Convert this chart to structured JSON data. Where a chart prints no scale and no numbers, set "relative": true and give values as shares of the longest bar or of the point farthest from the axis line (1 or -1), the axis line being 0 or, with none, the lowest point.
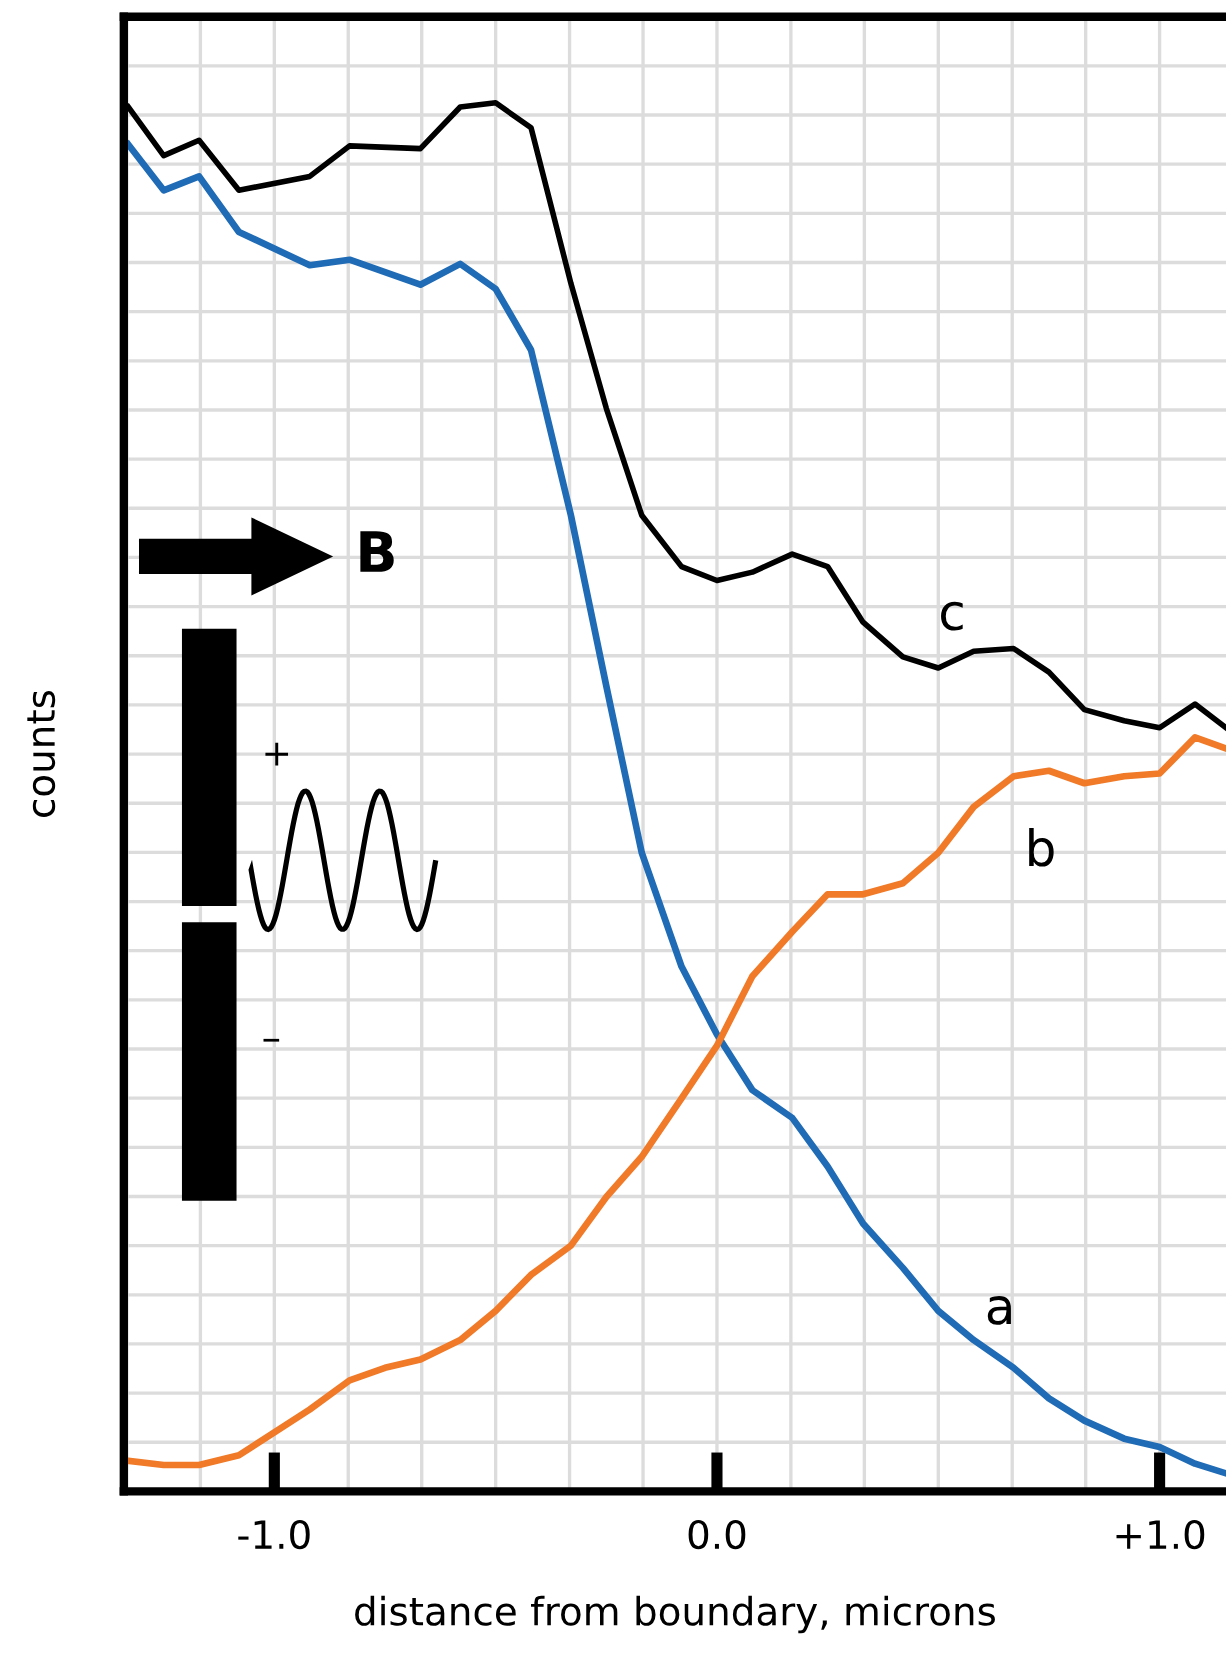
{
  "chart_data": {
    "type": "line",
    "relative": true,
    "xlabel": "distance from boundary, microns",
    "ylabel": "counts",
    "xlim": [
      -1.34,
      1.15
    ],
    "xticks": [
      {
        "value": -1.333,
        "label": null
      },
      {
        "value": -1.167,
        "label": null
      },
      {
        "value": -1.0,
        "label": "-1.0"
      },
      {
        "value": -0.833,
        "label": null
      },
      {
        "value": -0.667,
        "label": null
      },
      {
        "value": -0.5,
        "label": null
      },
      {
        "value": -0.333,
        "label": null
      },
      {
        "value": -0.167,
        "label": null
      },
      {
        "value": 0.0,
        "label": "0.0"
      },
      {
        "value": 0.167,
        "label": null
      },
      {
        "value": 0.333,
        "label": null
      },
      {
        "value": 0.5,
        "label": null
      },
      {
        "value": 0.667,
        "label": null
      },
      {
        "value": 0.833,
        "label": null
      },
      {
        "value": 1.0,
        "label": "+1.0"
      }
    ],
    "grid": true,
    "marker": "none",
    "line_style": "solid",
    "annotations": [
      "B",
      "+",
      "–"
    ],
    "series": [
      {
        "name": "a",
        "color": "#1f6bb5",
        "x": [
          -1.33,
          -1.25,
          -1.17,
          -1.08,
          -0.92,
          -0.83,
          -0.67,
          -0.58,
          -0.5,
          -0.42,
          -0.33,
          -0.25,
          -0.17,
          -0.08,
          0.0,
          0.08,
          0.17,
          0.25,
          0.33,
          0.42,
          0.5,
          0.58,
          0.67,
          0.75,
          0.83,
          0.92,
          1.0,
          1.08,
          1.15
        ],
        "values": [
          0.97,
          0.937,
          0.947,
          0.907,
          0.883,
          0.887,
          0.869,
          0.884,
          0.866,
          0.822,
          0.703,
          0.58,
          0.46,
          0.378,
          0.329,
          0.289,
          0.269,
          0.234,
          0.193,
          0.161,
          0.13,
          0.109,
          0.089,
          0.067,
          0.051,
          0.038,
          0.032,
          0.02,
          0.013
        ]
      },
      {
        "name": "b",
        "color": "#f07a28",
        "x": [
          -1.33,
          -1.25,
          -1.17,
          -1.08,
          -0.92,
          -0.83,
          -0.75,
          -0.67,
          -0.58,
          -0.5,
          -0.42,
          -0.33,
          -0.25,
          -0.17,
          -0.08,
          0.0,
          0.08,
          0.17,
          0.25,
          0.33,
          0.42,
          0.5,
          0.58,
          0.67,
          0.75,
          0.83,
          0.92,
          1.0,
          1.08,
          1.15
        ],
        "values": [
          0.022,
          0.019,
          0.019,
          0.026,
          0.059,
          0.08,
          0.089,
          0.095,
          0.109,
          0.13,
          0.156,
          0.177,
          0.212,
          0.241,
          0.283,
          0.321,
          0.371,
          0.403,
          0.43,
          0.43,
          0.438,
          0.46,
          0.493,
          0.515,
          0.519,
          0.51,
          0.515,
          0.517,
          0.543,
          0.535
        ]
      },
      {
        "name": "c",
        "color": "#000000",
        "x": [
          -1.33,
          -1.25,
          -1.17,
          -1.08,
          -0.92,
          -0.83,
          -0.67,
          -0.58,
          -0.5,
          -0.42,
          -0.33,
          -0.25,
          -0.17,
          -0.08,
          0.0,
          0.08,
          0.17,
          0.25,
          0.33,
          0.42,
          0.5,
          0.58,
          0.67,
          0.75,
          0.83,
          0.92,
          1.0,
          1.08,
          1.15
        ],
        "values": [
          0.997,
          0.962,
          0.973,
          0.937,
          0.947,
          0.969,
          0.967,
          0.997,
          1.0,
          0.982,
          0.87,
          0.78,
          0.703,
          0.666,
          0.656,
          0.662,
          0.675,
          0.666,
          0.626,
          0.601,
          0.593,
          0.605,
          0.607,
          0.59,
          0.563,
          0.555,
          0.55,
          0.567,
          0.55
        ]
      }
    ]
  }
}
